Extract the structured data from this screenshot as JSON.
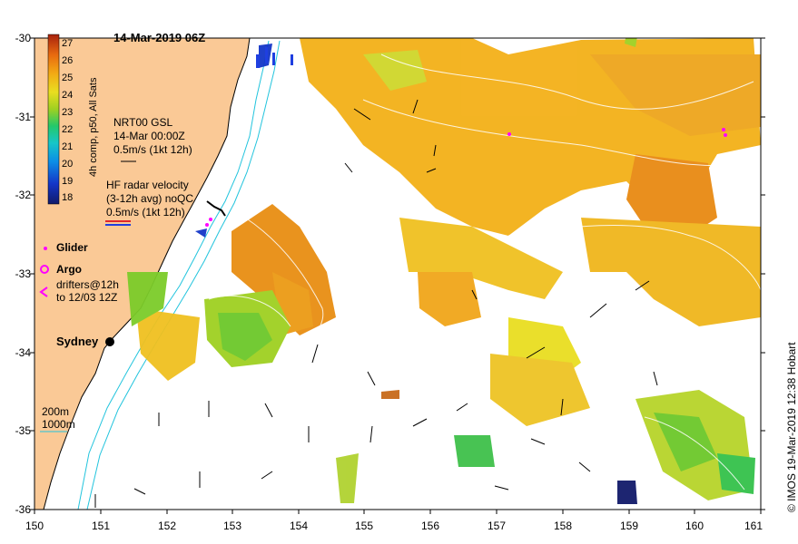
{
  "map": {
    "title": "14-Mar-2019 06Z",
    "credit": "© IMOS 19-Mar-2019 12:38 Hobart",
    "x_ticks": [
      "150",
      "151",
      "152",
      "153",
      "154",
      "155",
      "156",
      "157",
      "158",
      "159",
      "160",
      "161"
    ],
    "y_ticks": [
      "-30",
      "-31",
      "-32",
      "-33",
      "-34",
      "-35",
      "-36"
    ],
    "city_label": "Sydney",
    "colorbar": {
      "title": "4h comp, p50, All Sats",
      "labels": [
        "27",
        "26",
        "25",
        "24",
        "23",
        "22",
        "21",
        "20",
        "19",
        "18"
      ]
    },
    "legend": {
      "nrt_line1": "NRT00 GSL",
      "nrt_line2": "14-Mar 00:00Z",
      "nrt_line3": "0.5m/s (1kt 12h)",
      "hf_line1": "HF radar velocity",
      "hf_line2": "(3-12h avg) noQC",
      "hf_line3": "0.5m/s (1kt 12h)",
      "glider": "Glider",
      "argo": "Argo",
      "drifters_line1": "drifters@12h",
      "drifters_line2": "to 12/03 12Z",
      "depth_200": "200m",
      "depth_1000": "1000m"
    },
    "colors": {
      "land": "#fac996",
      "isobath": "#22c4dd",
      "glider": "#ff00ff",
      "hf_red": "#e0262b",
      "hf_blue": "#1f3fe0"
    }
  }
}
